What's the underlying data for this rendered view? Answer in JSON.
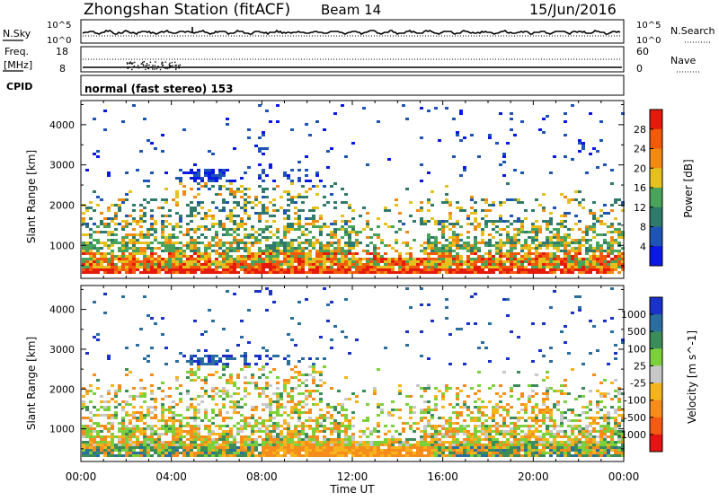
{
  "header": {
    "station": "Zhongshan Station (fitACF)",
    "beam": "Beam 14",
    "date": "15/Jun/2016"
  },
  "top_panels": {
    "noise": {
      "left_label": "N.Sky",
      "right_label": "N.Search",
      "left_ticks": [
        "10^5",
        "10^0"
      ],
      "right_ticks": [
        "10^5",
        "10^0"
      ]
    },
    "freq": {
      "left_label_1": "Freq.",
      "left_label_2": "[MHz]",
      "right_label": "Nave",
      "left_ticks": [
        "18",
        "8"
      ],
      "right_ticks": [
        "60",
        "0"
      ]
    },
    "cpid": {
      "label": "CPID",
      "value": "normal (fast stereo) 153"
    }
  },
  "chart_data": [
    {
      "type": "heatmap",
      "ylabel": "Slant Range [km]",
      "xlabel": "Time UT",
      "x_ticks": [
        "00:00",
        "04:00",
        "08:00",
        "12:00",
        "16:00",
        "20:00",
        "00:00"
      ],
      "y_ticks": [
        "1000",
        "2000",
        "3000",
        "4000"
      ],
      "ylim": [
        180,
        4600
      ],
      "colorbar": {
        "label": "Power [dB]",
        "ticks": [
          "4",
          "8",
          "12",
          "16",
          "20",
          "24",
          "28"
        ],
        "colors": [
          "#0a18e6",
          "#1e54b4",
          "#2f7a6a",
          "#4aa35a",
          "#e6c01c",
          "#f08a12",
          "#f05a0a",
          "#e61a0a"
        ]
      }
    },
    {
      "type": "heatmap",
      "ylabel": "Slant Range [km]",
      "xlabel": "Time UT",
      "x_ticks": [
        "00:00",
        "04:00",
        "08:00",
        "12:00",
        "16:00",
        "20:00",
        "00:00"
      ],
      "y_ticks": [
        "1000",
        "2000",
        "3000",
        "4000"
      ],
      "ylim": [
        180,
        4600
      ],
      "colorbar": {
        "label": "Velocity [m s^-1]",
        "ticks": [
          "1000",
          "500",
          "100",
          "25",
          "-25",
          "-100",
          "-500",
          "-1000"
        ],
        "colors": [
          "#1a32c8",
          "#2a6ea0",
          "#3c8c5a",
          "#7cd03c",
          "#c8c8c8",
          "#f5b41c",
          "#f58c1c",
          "#f55a14",
          "#e61414"
        ]
      }
    }
  ]
}
